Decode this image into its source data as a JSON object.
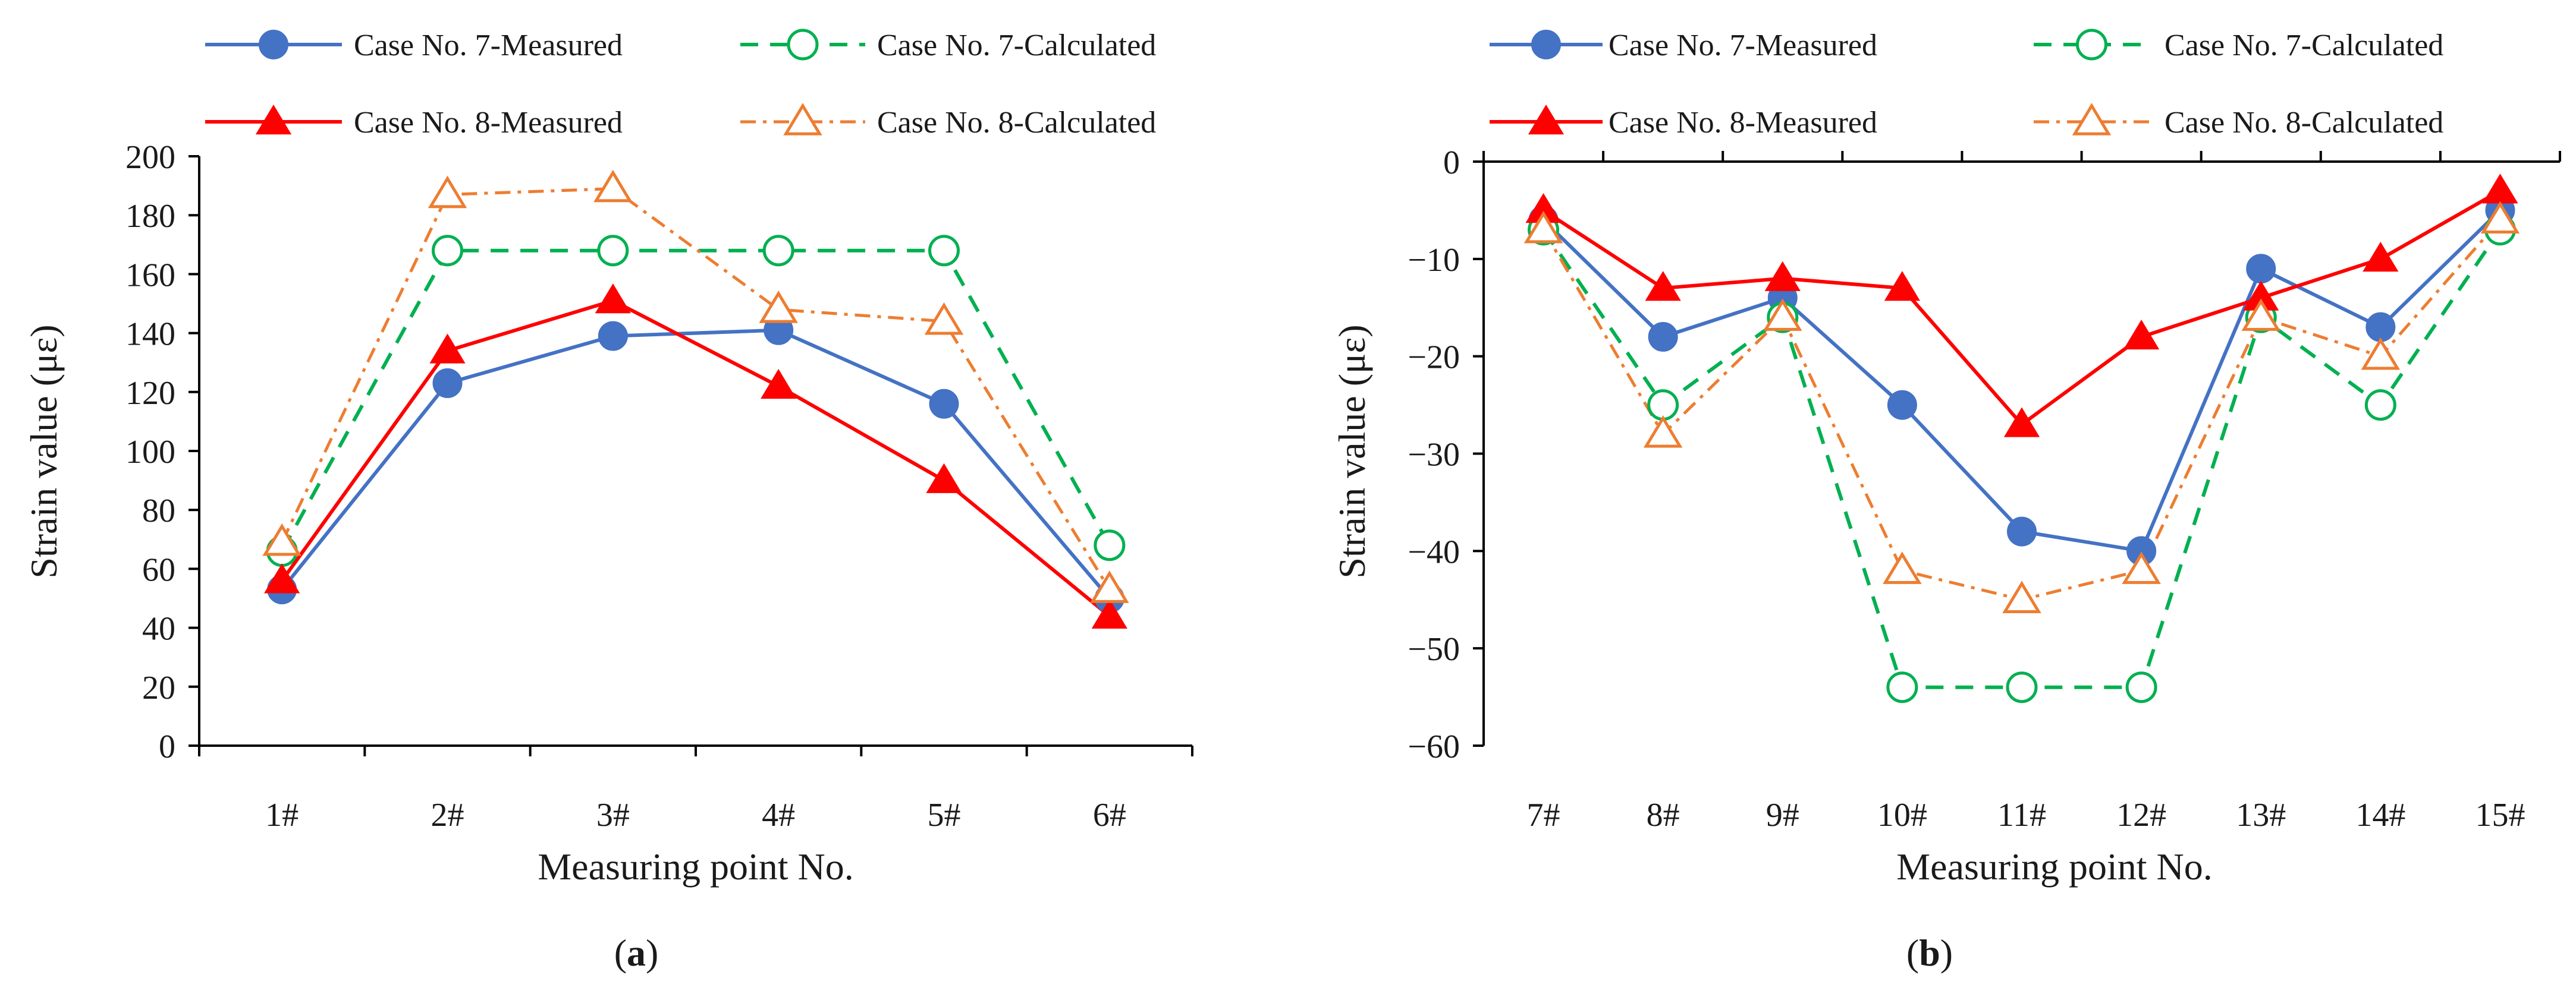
{
  "figure": {
    "colors": {
      "c7_measured": "#4472C4",
      "c7_calculated": "#00B050",
      "c8_measured": "#FF0000",
      "c8_calculated": "#ED7D31",
      "axis": "#000000",
      "text": "#1a1a1a"
    }
  },
  "chart_data": [
    {
      "id": "a",
      "type": "line",
      "panel_label_pre": "(",
      "panel_label_letter": "a",
      "panel_label_post": ")",
      "title": "",
      "xlabel": "Measuring point No.",
      "ylabel": "Strain value (με)",
      "categories": [
        "1#",
        "2#",
        "3#",
        "4#",
        "5#",
        "6#"
      ],
      "ylim": [
        0,
        200
      ],
      "yticks": [
        0,
        20,
        40,
        60,
        80,
        100,
        120,
        140,
        160,
        180,
        200
      ],
      "grid": false,
      "legend": "top",
      "series": [
        {
          "key": "c7m",
          "name": "Case No. 7-Measured",
          "marker": "circle-filled",
          "dash": "solid",
          "color_key": "c7_measured",
          "values": [
            53,
            123,
            139,
            141,
            116,
            50
          ]
        },
        {
          "key": "c7c",
          "name": "Case No. 7-Calculated",
          "marker": "circle-open",
          "dash": "dash",
          "color_key": "c7_calculated",
          "values": [
            66,
            168,
            168,
            168,
            168,
            68
          ]
        },
        {
          "key": "c8m",
          "name": "Case No. 8-Measured",
          "marker": "triangle-filled",
          "dash": "solid",
          "color_key": "c8_measured",
          "values": [
            56,
            134,
            151,
            122,
            90,
            44
          ]
        },
        {
          "key": "c8c",
          "name": "Case No. 8-Calculated",
          "marker": "triangle-open",
          "dash": "dashdot",
          "color_key": "c8_calculated",
          "values": [
            69,
            187,
            189,
            148,
            144,
            53
          ]
        }
      ]
    },
    {
      "id": "b",
      "type": "line",
      "panel_label_pre": "(",
      "panel_label_letter": "b",
      "panel_label_post": ")",
      "title": "",
      "xlabel": "Measuring point No.",
      "ylabel": "Strain value (με)",
      "categories": [
        "7#",
        "8#",
        "9#",
        "10#",
        "11#",
        "12#",
        "13#",
        "14#",
        "15#"
      ],
      "ylim": [
        -60,
        0
      ],
      "yticks": [
        0,
        -10,
        -20,
        -30,
        -40,
        -50,
        -60
      ],
      "ytick_labels": [
        "0",
        "−10",
        "−20",
        "−30",
        "−40",
        "−50",
        "−60"
      ],
      "grid": false,
      "legend": "top",
      "series": [
        {
          "key": "c7m",
          "name": "Case No. 7-Measured",
          "marker": "circle-filled",
          "dash": "solid",
          "color_key": "c7_measured",
          "values": [
            -6,
            -18,
            -14,
            -25,
            -38,
            -40,
            -11,
            -17,
            -5
          ]
        },
        {
          "key": "c7c",
          "name": "Case No. 7-Calculated",
          "marker": "circle-open",
          "dash": "dash",
          "color_key": "c7_calculated",
          "values": [
            -7,
            -25,
            -16,
            -54,
            -54,
            -54,
            -16,
            -25,
            -7
          ]
        },
        {
          "key": "c8m",
          "name": "Case No. 8-Measured",
          "marker": "triangle-filled",
          "dash": "solid",
          "color_key": "c8_measured",
          "values": [
            -5,
            -13,
            -12,
            -13,
            -27,
            -18,
            -14,
            -10,
            -3
          ]
        },
        {
          "key": "c8c",
          "name": "Case No. 8-Calculated",
          "marker": "triangle-open",
          "dash": "dashdot",
          "color_key": "c8_calculated",
          "values": [
            -7,
            -28,
            -16,
            -42,
            -45,
            -42,
            -16,
            -20,
            -6
          ]
        }
      ]
    }
  ]
}
